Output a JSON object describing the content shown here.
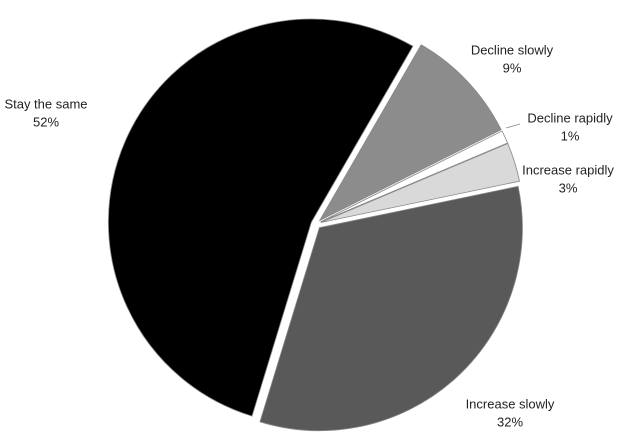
{
  "chart_data": {
    "type": "pie",
    "categories": [
      "Decline slowly",
      "Decline rapidly",
      "Increase rapidly",
      "Increase slowly",
      "Stay the same"
    ],
    "values": [
      9,
      1,
      3,
      32,
      52
    ],
    "value_labels": [
      "9%",
      "1%",
      "3%",
      "32%",
      "52%"
    ],
    "colors": [
      "#8c8c8c",
      "#ffffff",
      "#d9d9d9",
      "#595959",
      "#000000"
    ]
  }
}
